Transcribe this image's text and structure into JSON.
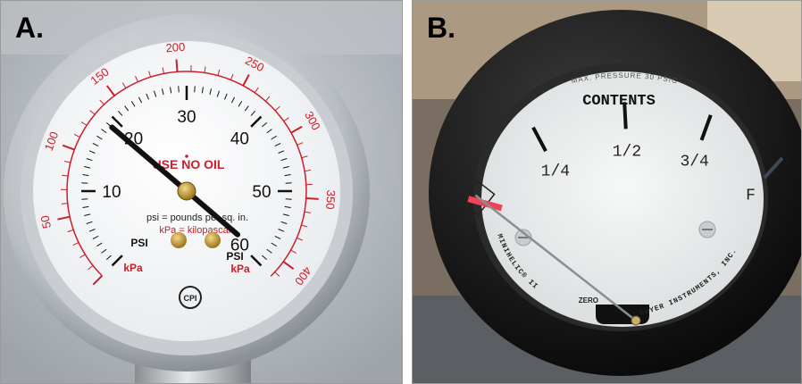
{
  "panel_a": {
    "label": "A.",
    "inner_scale": {
      "labels": [
        "10",
        "20",
        "30",
        "40",
        "50",
        "60"
      ],
      "color": "#111111"
    },
    "outer_scale": {
      "labels": [
        "50",
        "100",
        "150",
        "200",
        "250",
        "300",
        "350",
        "400"
      ],
      "color": "#c8202a"
    },
    "warning_text": "USE NO OIL",
    "legend_psi": "psi = pounds per sq. in.",
    "legend_kpa": "kPa = kilopascals",
    "left_unit_psi": "PSI",
    "left_unit_kpa": "kPa",
    "right_unit_psi": "PSI",
    "right_unit_kpa": "kPa",
    "brand_logo": "CPI",
    "needle_reading_psi": 19,
    "accent_red": "#c8202a"
  },
  "panel_b": {
    "label": "B.",
    "top_text": "MAX. PRESSURE 30 PSIG",
    "title": "CONTENTS",
    "scale_labels": [
      "1/4",
      "1/2",
      "3/4",
      "F"
    ],
    "brand_left": "MINIHELIC® II",
    "zero_label": "ZERO",
    "brand_right": "DWYER INSTRUMENTS, INC.",
    "needle_reading_fraction": 0.0,
    "bezel_color": "#141414",
    "empty_zone_color": "#ee4455"
  }
}
